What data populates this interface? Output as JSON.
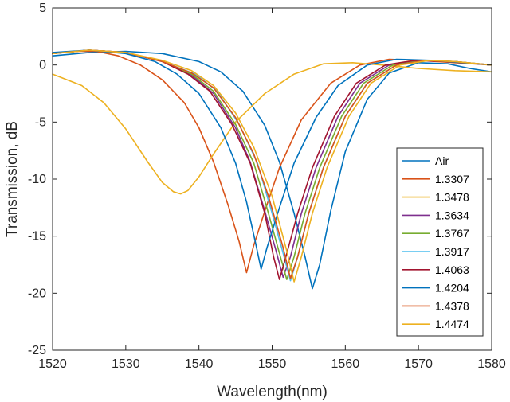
{
  "chart_data": {
    "type": "line",
    "title": "",
    "xlabel": "Wavelength(nm)",
    "ylabel": "Transmission, dB",
    "xlim": [
      1520,
      1580
    ],
    "ylim": [
      -25,
      5
    ],
    "xticks": [
      1520,
      1530,
      1540,
      1550,
      1560,
      1570,
      1580
    ],
    "yticks": [
      5,
      0,
      -5,
      -10,
      -15,
      -20,
      -25
    ],
    "grid": false,
    "legend_position": "bottom-right",
    "series": [
      {
        "name": "Air",
        "color": "#0072BD",
        "x": [
          1520,
          1525,
          1530,
          1535,
          1540,
          1543,
          1546,
          1549,
          1551,
          1553,
          1554.5,
          1555.5,
          1556.5,
          1558,
          1560,
          1563,
          1566,
          1570,
          1574,
          1577,
          1580
        ],
        "y": [
          0.8,
          1.1,
          1.2,
          1.0,
          0.3,
          -0.6,
          -2.3,
          -5.3,
          -8.5,
          -13.0,
          -16.8,
          -19.6,
          -17.5,
          -12.8,
          -7.6,
          -3.0,
          -0.7,
          0.2,
          0.1,
          -0.3,
          -0.6
        ]
      },
      {
        "name": "1.3307",
        "color": "#D95319",
        "x": [
          1520,
          1523,
          1526,
          1529,
          1532,
          1535,
          1538,
          1540,
          1542,
          1544,
          1545.5,
          1546.5,
          1547.5,
          1549,
          1551,
          1554,
          1558,
          1562,
          1566,
          1570,
          1575,
          1580
        ],
        "y": [
          1.0,
          1.2,
          1.2,
          0.8,
          0.0,
          -1.3,
          -3.3,
          -5.5,
          -8.5,
          -12.3,
          -15.5,
          -18.2,
          -15.8,
          -12.8,
          -9.0,
          -4.8,
          -1.6,
          0.0,
          0.5,
          0.4,
          0.2,
          0.0
        ]
      },
      {
        "name": "1.3478",
        "color": "#EDB120",
        "x": [
          1520,
          1524,
          1527,
          1530,
          1533,
          1535,
          1536.5,
          1537.5,
          1538.5,
          1540,
          1542,
          1545,
          1549,
          1553,
          1557,
          1561,
          1565,
          1570,
          1575,
          1580
        ],
        "y": [
          -0.8,
          -1.8,
          -3.3,
          -5.6,
          -8.5,
          -10.3,
          -11.1,
          -11.3,
          -11.0,
          -9.8,
          -7.8,
          -5.0,
          -2.5,
          -0.8,
          0.1,
          0.2,
          0.0,
          -0.3,
          -0.5,
          -0.6
        ]
      },
      {
        "name": "1.3634",
        "color": "#7E2F8E",
        "x": [
          1520,
          1525,
          1530,
          1535,
          1539,
          1542,
          1545,
          1547,
          1549,
          1550.5,
          1551.5,
          1552.5,
          1554,
          1556,
          1559,
          1562,
          1566,
          1570,
          1575,
          1580
        ],
        "y": [
          1.0,
          1.3,
          1.1,
          0.3,
          -0.9,
          -2.5,
          -5.5,
          -8.5,
          -12.8,
          -16.2,
          -18.6,
          -16.8,
          -13.0,
          -9.0,
          -4.5,
          -1.6,
          0.0,
          0.4,
          0.3,
          0.0
        ]
      },
      {
        "name": "1.3767",
        "color": "#77AC30",
        "x": [
          1520,
          1525,
          1530,
          1535,
          1539,
          1542,
          1545,
          1547.5,
          1549.5,
          1551,
          1552,
          1553,
          1554.5,
          1556.5,
          1559.5,
          1562.5,
          1566.5,
          1570.5,
          1575,
          1580
        ],
        "y": [
          1.0,
          1.3,
          1.1,
          0.3,
          -0.8,
          -2.3,
          -5.2,
          -8.6,
          -13.0,
          -16.5,
          -18.8,
          -16.8,
          -13.0,
          -9.0,
          -4.5,
          -1.6,
          0.0,
          0.4,
          0.3,
          0.0
        ]
      },
      {
        "name": "1.3917",
        "color": "#4DBEEE",
        "x": [
          1520,
          1525,
          1530,
          1535,
          1539.5,
          1542.5,
          1545.5,
          1548,
          1550,
          1551.5,
          1552.5,
          1553.5,
          1555,
          1557,
          1560,
          1563,
          1567,
          1571,
          1575,
          1580
        ],
        "y": [
          1.0,
          1.3,
          1.1,
          0.3,
          -0.8,
          -2.3,
          -5.2,
          -8.6,
          -13.0,
          -16.5,
          -18.9,
          -16.8,
          -13.0,
          -9.0,
          -4.5,
          -1.6,
          0.0,
          0.4,
          0.3,
          0.0
        ]
      },
      {
        "name": "1.4063",
        "color": "#A2142F",
        "x": [
          1520,
          1525,
          1530,
          1535,
          1538.5,
          1541.5,
          1544.5,
          1547,
          1549,
          1550.2,
          1551,
          1551.8,
          1553.5,
          1555.5,
          1558.5,
          1561.5,
          1565.5,
          1569.5,
          1574,
          1580
        ],
        "y": [
          1.0,
          1.3,
          1.1,
          0.3,
          -0.8,
          -2.3,
          -5.2,
          -8.6,
          -13.0,
          -16.8,
          -18.8,
          -17.0,
          -13.0,
          -9.0,
          -4.5,
          -1.6,
          0.0,
          0.4,
          0.3,
          0.0
        ]
      },
      {
        "name": "1.4204",
        "color": "#0072BD",
        "x": [
          1520,
          1525,
          1530,
          1534,
          1537,
          1540,
          1543,
          1545,
          1546.5,
          1547.8,
          1548.5,
          1549.3,
          1551,
          1553,
          1556,
          1559,
          1563,
          1567,
          1572,
          1576,
          1580
        ],
        "y": [
          1.1,
          1.3,
          1.0,
          0.3,
          -0.8,
          -2.5,
          -5.5,
          -8.6,
          -12.0,
          -15.8,
          -17.9,
          -16.0,
          -12.5,
          -8.6,
          -4.6,
          -1.8,
          0.0,
          0.5,
          0.4,
          0.2,
          0.0
        ]
      },
      {
        "name": "1.4378",
        "color": "#D95319",
        "x": [
          1520,
          1525,
          1530,
          1535,
          1539,
          1542,
          1545,
          1547.5,
          1549.5,
          1551.5,
          1552.5,
          1553.5,
          1555,
          1557,
          1560,
          1563,
          1567,
          1571,
          1575,
          1580
        ],
        "y": [
          1.0,
          1.3,
          1.1,
          0.3,
          -0.7,
          -2.0,
          -4.6,
          -7.8,
          -11.5,
          -16.0,
          -18.7,
          -16.8,
          -13.0,
          -9.0,
          -4.5,
          -1.6,
          0.0,
          0.4,
          0.3,
          0.0
        ]
      },
      {
        "name": "1.4474",
        "color": "#EDB120",
        "x": [
          1520,
          1525,
          1530,
          1535,
          1539,
          1542,
          1545,
          1547.5,
          1550,
          1552,
          1553,
          1554,
          1555.5,
          1557.5,
          1560.5,
          1563.5,
          1567.5,
          1571.5,
          1575,
          1580
        ],
        "y": [
          1.0,
          1.3,
          1.1,
          0.4,
          -0.5,
          -1.8,
          -4.2,
          -7.2,
          -11.5,
          -16.3,
          -19.0,
          -16.8,
          -13.0,
          -9.0,
          -4.5,
          -1.6,
          0.0,
          0.4,
          0.3,
          0.0
        ]
      }
    ]
  }
}
